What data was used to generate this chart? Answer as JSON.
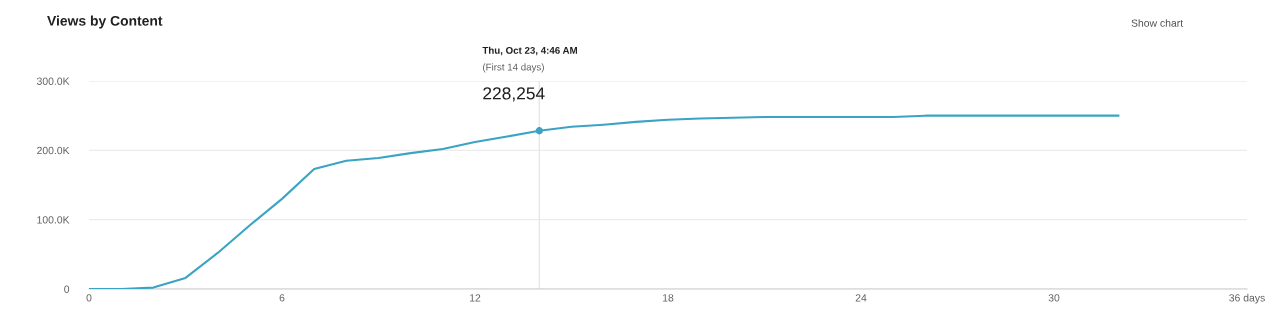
{
  "chart_data": {
    "type": "line",
    "title": "Views by Content",
    "x": [
      0,
      1,
      2,
      3,
      4,
      5,
      6,
      7,
      8,
      9,
      10,
      11,
      12,
      13,
      14,
      15,
      16,
      17,
      18,
      19,
      20,
      21,
      22,
      23,
      24,
      25,
      26,
      27,
      28,
      29,
      30,
      31,
      32
    ],
    "series": [
      {
        "color": "#3ba3c4",
        "marker": "none",
        "values": [
          0,
          0,
          2000,
          16000,
          52000,
          92000,
          130000,
          173000,
          185000,
          189000,
          196000,
          202000,
          212000,
          220000,
          228254,
          234000,
          237000,
          241000,
          244000,
          246000,
          247000,
          248000,
          248000,
          248000,
          248000,
          248000,
          250000,
          250000,
          250000,
          250000,
          250000,
          250000,
          250000
        ]
      },
      {
        "type": "scatter",
        "color": "#3ba3c4",
        "marker": "circle",
        "x": [
          14
        ],
        "values": [
          228254
        ]
      }
    ],
    "xlim": [
      0,
      36
    ],
    "xticks": [
      0,
      6,
      12,
      18,
      24,
      30,
      {
        "value": 36,
        "label": "36 days"
      }
    ],
    "ylim": [
      0,
      300000
    ],
    "yticks": [
      {
        "value": 0,
        "label": "0"
      },
      {
        "value": 100000,
        "label": "100.0K"
      },
      {
        "value": 200000,
        "label": "200.0K"
      },
      {
        "value": 300000,
        "label": "300.0K"
      }
    ],
    "grid": "y",
    "legend": false,
    "ref_lines": [
      {
        "axis": "x",
        "value": 14,
        "color": "#e6e6e6"
      }
    ],
    "annotations": [
      "Thu, Oct 23, 4:46 AM",
      "(First 14 days)",
      "228,254",
      "Show chart"
    ]
  }
}
